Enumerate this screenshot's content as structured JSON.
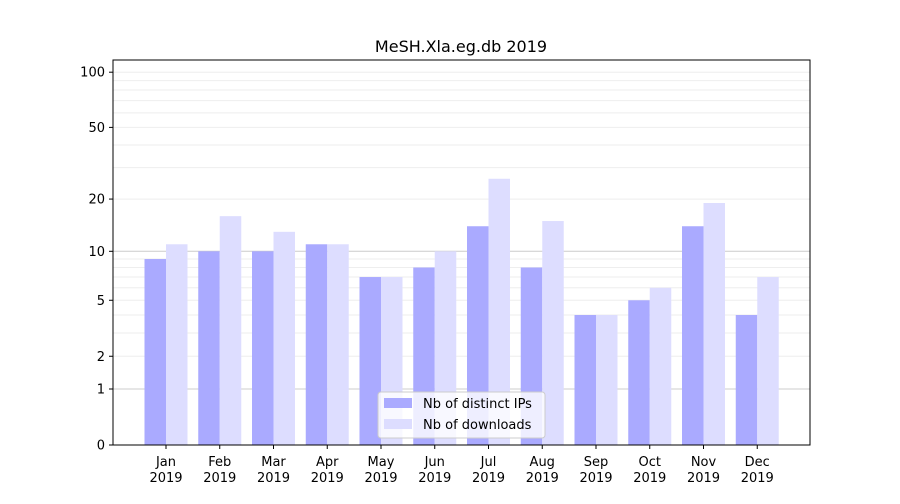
{
  "chart_data": {
    "type": "bar",
    "title": "MeSH.Xla.eg.db 2019",
    "xlabel": "",
    "ylabel": "",
    "yscale": "log(1+y)",
    "ylim": [
      0,
      110
    ],
    "yticks": [
      0,
      1,
      2,
      5,
      10,
      20,
      50,
      100
    ],
    "grid": true,
    "legend_position": "bottom-center",
    "categories": [
      "Jan\n2019",
      "Feb\n2019",
      "Mar\n2019",
      "Apr\n2019",
      "May\n2019",
      "Jun\n2019",
      "Jul\n2019",
      "Aug\n2019",
      "Sep\n2019",
      "Oct\n2019",
      "Nov\n2019",
      "Dec\n2019"
    ],
    "series": [
      {
        "name": "Nb of distinct IPs",
        "color": "#aaaaff",
        "values": [
          9,
          10,
          10,
          11,
          7,
          8,
          14,
          8,
          4,
          5,
          14,
          4
        ]
      },
      {
        "name": "Nb of downloads",
        "color": "#ddddff",
        "values": [
          11,
          16,
          13,
          11,
          7,
          10,
          26,
          15,
          4,
          6,
          19,
          7
        ]
      }
    ]
  }
}
